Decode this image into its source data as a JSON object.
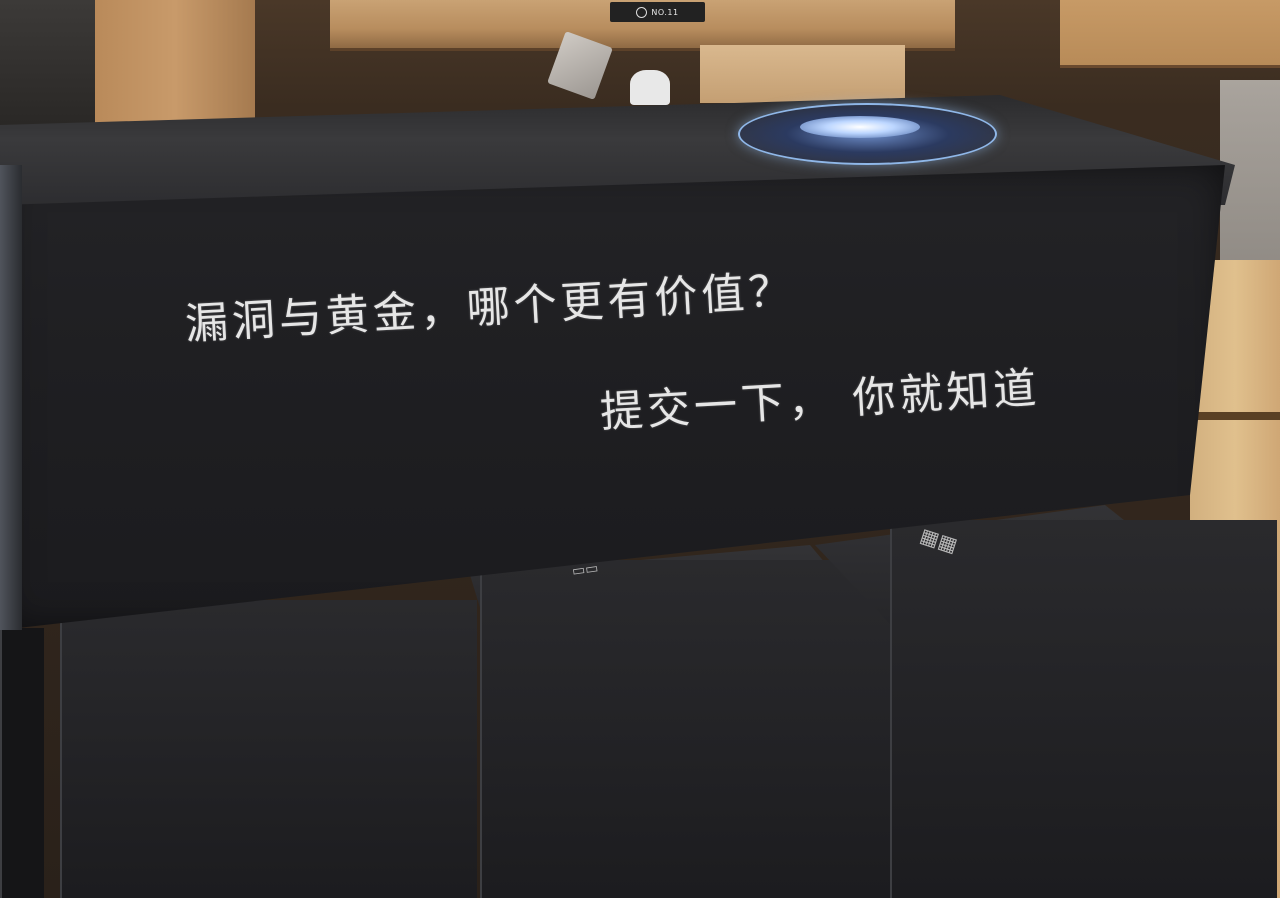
{
  "photo": {
    "shelf_label": "NO.11",
    "slogan_line1": "漏洞与黄金，哪个更有价值？",
    "slogan_line2": "提交一下， 你就知道"
  },
  "colors": {
    "box_black": "#1f1f22",
    "text_white": "#e6e6e6",
    "wood": "#c49f73",
    "logo_blue": "#8fb7e8"
  }
}
